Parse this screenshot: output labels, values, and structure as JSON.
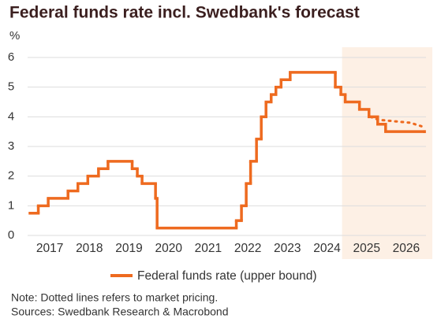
{
  "chart_data": {
    "type": "step",
    "title": "Federal funds rate incl. Swedbank's forecast",
    "y_label": "%",
    "xlim": [
      2016.94,
      2027.0
    ],
    "ylim": [
      0,
      6
    ],
    "yticks": [
      0,
      1,
      2,
      3,
      4,
      5,
      6
    ],
    "grid": true,
    "xticks": [
      {
        "value": 2017.5,
        "label": "2017"
      },
      {
        "value": 2018.5,
        "label": "2018"
      },
      {
        "value": 2019.5,
        "label": "2019"
      },
      {
        "value": 2020.5,
        "label": "2020"
      },
      {
        "value": 2021.5,
        "label": "2021"
      },
      {
        "value": 2022.5,
        "label": "2022"
      },
      {
        "value": 2023.5,
        "label": "2023"
      },
      {
        "value": 2024.5,
        "label": "2024"
      },
      {
        "value": 2025.5,
        "label": "2025"
      },
      {
        "value": 2026.5,
        "label": "2026"
      }
    ],
    "forecast_start": 2024.88,
    "forecast_color": "#fdf0e5",
    "series": [
      {
        "name": "Federal funds rate (upper bound)",
        "color": "#ee6a1f",
        "style": "solid",
        "x": [
          2017.0,
          2017.21,
          2017.46,
          2017.96,
          2018.21,
          2018.46,
          2018.73,
          2018.97,
          2019.58,
          2019.71,
          2019.83,
          2020.17,
          2020.21,
          2022.21,
          2022.34,
          2022.46,
          2022.57,
          2022.72,
          2022.84,
          2022.96,
          2023.09,
          2023.21,
          2023.34,
          2023.57,
          2024.71,
          2024.85,
          2024.96,
          2025.32,
          2025.56,
          2025.78,
          2025.98,
          2026.96
        ],
        "values": [
          0.75,
          1.0,
          1.25,
          1.5,
          1.75,
          2.0,
          2.25,
          2.5,
          2.25,
          2.0,
          1.75,
          1.25,
          0.25,
          0.5,
          1.0,
          1.75,
          2.5,
          3.25,
          4.0,
          4.5,
          4.75,
          5.0,
          5.25,
          5.5,
          5.0,
          4.75,
          4.5,
          4.25,
          4.0,
          3.75,
          3.5,
          3.5
        ]
      },
      {
        "color": "#ee6a1f",
        "style": "dotted",
        "x": [
          2025.6,
          2025.8,
          2026.2,
          2026.6,
          2026.96
        ],
        "values": [
          4.0,
          3.9,
          3.85,
          3.8,
          3.65
        ]
      }
    ],
    "notes": [
      "Note: Dotted lines refers to market pricing.",
      "Sources: Swedbank Research & Macrobond"
    ]
  }
}
